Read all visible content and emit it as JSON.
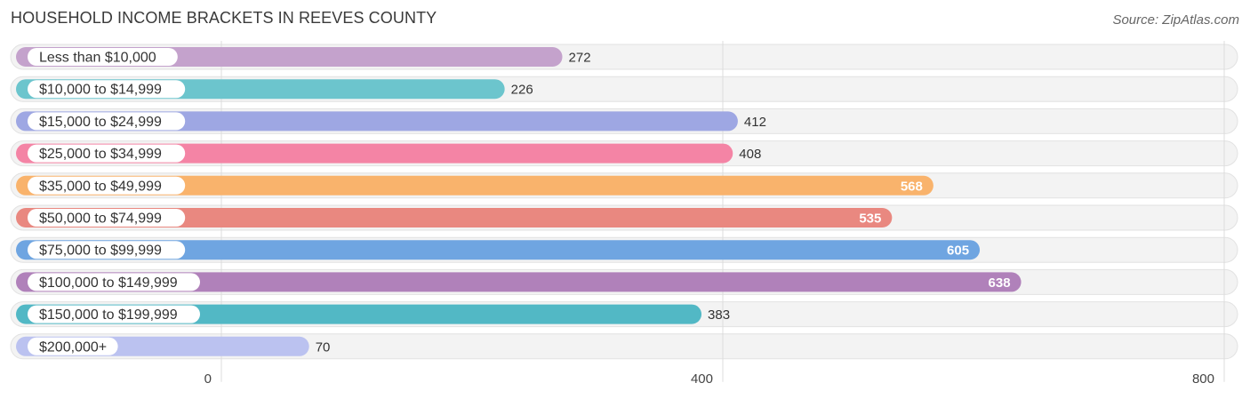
{
  "header": {
    "title": "HOUSEHOLD INCOME BRACKETS IN REEVES COUNTY",
    "source": "Source: ZipAtlas.com"
  },
  "chart_data": {
    "type": "bar",
    "orientation": "horizontal",
    "title": "HOUSEHOLD INCOME BRACKETS IN REEVES COUNTY",
    "categories": [
      "Less than $10,000",
      "$10,000 to $14,999",
      "$15,000 to $24,999",
      "$25,000 to $34,999",
      "$35,000 to $49,999",
      "$50,000 to $74,999",
      "$75,000 to $99,999",
      "$100,000 to $149,999",
      "$150,000 to $199,999",
      "$200,000+"
    ],
    "values": [
      272,
      226,
      412,
      408,
      568,
      535,
      605,
      638,
      383,
      70
    ],
    "colors": [
      "#c4a2cc",
      "#6cc5cd",
      "#9ea7e3",
      "#f484a5",
      "#f9b36c",
      "#e98880",
      "#6fa5e1",
      "#b081ba",
      "#52b8c5",
      "#bbc2f0"
    ],
    "xlim": [
      0,
      800
    ],
    "ticks": [
      0,
      400,
      800
    ],
    "grid": true,
    "legend": "none"
  }
}
